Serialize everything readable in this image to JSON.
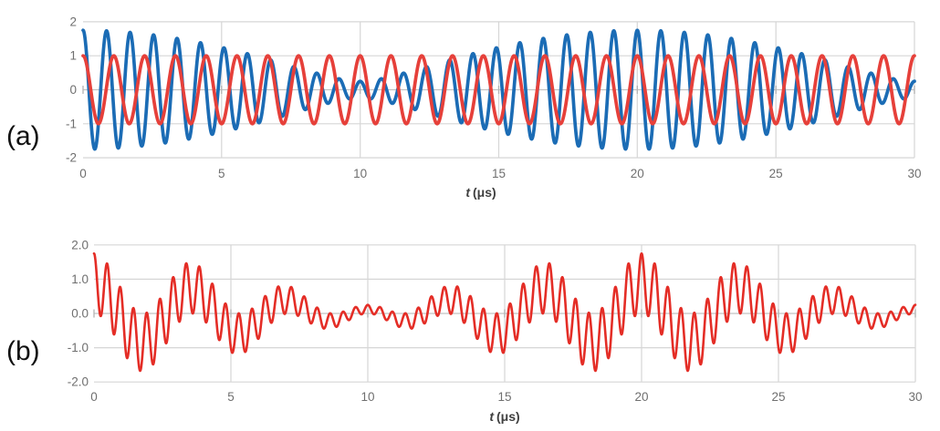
{
  "figure": {
    "background": "#ffffff"
  },
  "panels": [
    {
      "label": "(a)"
    },
    {
      "label": "(b)"
    }
  ],
  "style": {
    "gridline_color": "#d6d6d6",
    "axis_color": "#c2c2c2",
    "tick_color": "#b3b3b3",
    "tick_label_color": "#6f6f6f",
    "axis_label_color": "#3f3f3f",
    "panel_label_color": "#111111"
  },
  "chart_data": [
    {
      "panel": "a",
      "type": "line",
      "title": "",
      "xlabel_variable": "t",
      "xlabel_unit": "(μs)",
      "xlim": [
        0,
        30
      ],
      "ylim": [
        -2,
        2
      ],
      "x_ticks": [
        0,
        5,
        10,
        15,
        20,
        25,
        30
      ],
      "x_tick_labels": [
        "0",
        "5",
        "10",
        "15",
        "20",
        "25",
        "30"
      ],
      "y_ticks": [
        2,
        1,
        0,
        -1,
        -2
      ],
      "y_tick_labels": [
        "2",
        "1",
        "0",
        "-1",
        "-2"
      ],
      "grid": true,
      "legend": "none",
      "sample_step_us": 0.01,
      "series": [
        {
          "name": "beating-signal-blue",
          "color": "#1B6CB5",
          "line_width": 3.7,
          "definition": "sum_of_cosines",
          "components": [
            {
              "amplitude": 1.0,
              "frequency_per_us": 1.2
            },
            {
              "amplitude": 0.75,
              "frequency_per_us": 1.15
            }
          ],
          "notes": "two-component beat: envelope max ~1.75 at t=0 and t=20 us, envelope min ~0.25 at t=10 and t=30 us"
        },
        {
          "name": "reference-signal-red",
          "color": "#E6403A",
          "line_width": 3.7,
          "definition": "sum_of_cosines",
          "components": [
            {
              "amplitude": 1.0,
              "frequency_per_us": 0.9
            }
          ],
          "notes": "constant unit amplitude cosine, period 1.11 us, starts at +1"
        }
      ]
    },
    {
      "panel": "b",
      "type": "line",
      "title": "",
      "xlabel_variable": "t",
      "xlabel_unit": "(μs)",
      "xlim": [
        0,
        30
      ],
      "ylim": [
        -2,
        2
      ],
      "x_ticks": [
        0,
        5,
        10,
        15,
        20,
        25,
        30
      ],
      "x_tick_labels": [
        "0",
        "5",
        "10",
        "15",
        "20",
        "25",
        "30"
      ],
      "y_ticks": [
        2,
        1,
        0,
        -1,
        -2
      ],
      "y_tick_labels": [
        "2.0",
        "1.0",
        "0.0",
        "-1.0",
        "-2.0"
      ],
      "grid": true,
      "legend": "none",
      "sample_step_us": 0.01,
      "series": [
        {
          "name": "product-signal-red",
          "color": "#E42D26",
          "line_width": 2.6,
          "definition": "product",
          "operands": [
            {
              "components": [
                {
                  "amplitude": 1.0,
                  "frequency_per_us": 1.2
                },
                {
                  "amplitude": 0.75,
                  "frequency_per_us": 1.15
                }
              ]
            },
            {
              "components": [
                {
                  "amplitude": 1.0,
                  "frequency_per_us": 0.9
                }
              ]
            }
          ],
          "notes": "product of the two panel-a signals; value 1.75 at t=0, deep troughs ~-1.6 near t=1.7 and t=21.7 us, peak ~1.75 at t=20 us, -1 at t=5, 15, 25 us"
        }
      ]
    }
  ]
}
